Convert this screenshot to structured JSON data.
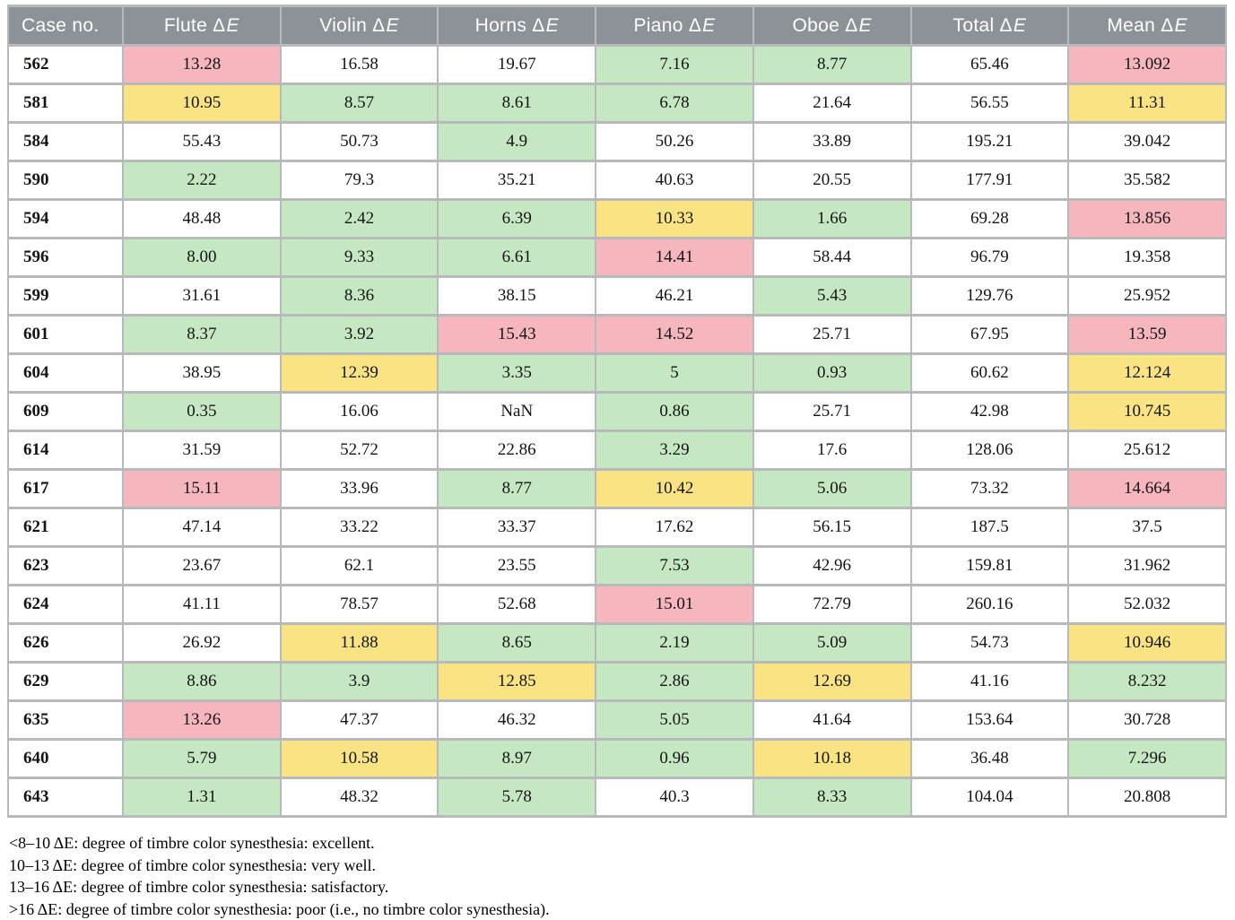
{
  "colors": {
    "header_bg": "#8d9298",
    "border": "#b7b9ba",
    "green_excellent": "#c5e8c2",
    "yellow_very_well": "#f9e383",
    "pink_satisfactory": "#f5b6bd",
    "white_poor": "#ffffff",
    "header_text": "#ffffff"
  },
  "table": {
    "columns": [
      {
        "text": "Case no.",
        "em": ""
      },
      {
        "text": "Flute Δ",
        "em": "E"
      },
      {
        "text": "Violin Δ",
        "em": "E"
      },
      {
        "text": "Horns Δ",
        "em": "E"
      },
      {
        "text": "Piano Δ",
        "em": "E"
      },
      {
        "text": "Oboe Δ",
        "em": "E"
      },
      {
        "text": "Total Δ",
        "em": "E"
      },
      {
        "text": "Mean Δ",
        "em": "E"
      }
    ],
    "rows": [
      {
        "case": "562",
        "cells": [
          {
            "v": "13.28",
            "c": "pink"
          },
          {
            "v": "16.58",
            "c": "white"
          },
          {
            "v": "19.67",
            "c": "white"
          },
          {
            "v": "7.16",
            "c": "green"
          },
          {
            "v": "8.77",
            "c": "green"
          },
          {
            "v": "65.46",
            "c": "white"
          },
          {
            "v": "13.092",
            "c": "pink"
          }
        ]
      },
      {
        "case": "581",
        "cells": [
          {
            "v": "10.95",
            "c": "yellow"
          },
          {
            "v": "8.57",
            "c": "green"
          },
          {
            "v": "8.61",
            "c": "green"
          },
          {
            "v": "6.78",
            "c": "green"
          },
          {
            "v": "21.64",
            "c": "white"
          },
          {
            "v": "56.55",
            "c": "white"
          },
          {
            "v": "11.31",
            "c": "yellow"
          }
        ]
      },
      {
        "case": "584",
        "cells": [
          {
            "v": "55.43",
            "c": "white"
          },
          {
            "v": "50.73",
            "c": "white"
          },
          {
            "v": "4.9",
            "c": "green"
          },
          {
            "v": "50.26",
            "c": "white"
          },
          {
            "v": "33.89",
            "c": "white"
          },
          {
            "v": "195.21",
            "c": "white"
          },
          {
            "v": "39.042",
            "c": "white"
          }
        ]
      },
      {
        "case": "590",
        "cells": [
          {
            "v": "2.22",
            "c": "green"
          },
          {
            "v": "79.3",
            "c": "white"
          },
          {
            "v": "35.21",
            "c": "white"
          },
          {
            "v": "40.63",
            "c": "white"
          },
          {
            "v": "20.55",
            "c": "white"
          },
          {
            "v": "177.91",
            "c": "white"
          },
          {
            "v": "35.582",
            "c": "white"
          }
        ]
      },
      {
        "case": "594",
        "cells": [
          {
            "v": "48.48",
            "c": "white"
          },
          {
            "v": "2.42",
            "c": "green"
          },
          {
            "v": "6.39",
            "c": "green"
          },
          {
            "v": "10.33",
            "c": "yellow"
          },
          {
            "v": "1.66",
            "c": "green"
          },
          {
            "v": "69.28",
            "c": "white"
          },
          {
            "v": "13.856",
            "c": "pink"
          }
        ]
      },
      {
        "case": "596",
        "cells": [
          {
            "v": "8.00",
            "c": "green"
          },
          {
            "v": "9.33",
            "c": "green"
          },
          {
            "v": "6.61",
            "c": "green"
          },
          {
            "v": "14.41",
            "c": "pink"
          },
          {
            "v": "58.44",
            "c": "white"
          },
          {
            "v": "96.79",
            "c": "white"
          },
          {
            "v": "19.358",
            "c": "white"
          }
        ]
      },
      {
        "case": "599",
        "cells": [
          {
            "v": "31.61",
            "c": "white"
          },
          {
            "v": "8.36",
            "c": "green"
          },
          {
            "v": "38.15",
            "c": "white"
          },
          {
            "v": "46.21",
            "c": "white"
          },
          {
            "v": "5.43",
            "c": "green"
          },
          {
            "v": "129.76",
            "c": "white"
          },
          {
            "v": "25.952",
            "c": "white"
          }
        ]
      },
      {
        "case": "601",
        "cells": [
          {
            "v": "8.37",
            "c": "green"
          },
          {
            "v": "3.92",
            "c": "green"
          },
          {
            "v": "15.43",
            "c": "pink"
          },
          {
            "v": "14.52",
            "c": "pink"
          },
          {
            "v": "25.71",
            "c": "white"
          },
          {
            "v": "67.95",
            "c": "white"
          },
          {
            "v": "13.59",
            "c": "pink"
          }
        ]
      },
      {
        "case": "604",
        "cells": [
          {
            "v": "38.95",
            "c": "white"
          },
          {
            "v": "12.39",
            "c": "yellow"
          },
          {
            "v": "3.35",
            "c": "green"
          },
          {
            "v": "5",
            "c": "green"
          },
          {
            "v": "0.93",
            "c": "green"
          },
          {
            "v": "60.62",
            "c": "white"
          },
          {
            "v": "12.124",
            "c": "yellow"
          }
        ]
      },
      {
        "case": "609",
        "cells": [
          {
            "v": "0.35",
            "c": "green"
          },
          {
            "v": "16.06",
            "c": "white"
          },
          {
            "v": "NaN",
            "c": "white"
          },
          {
            "v": "0.86",
            "c": "green"
          },
          {
            "v": "25.71",
            "c": "white"
          },
          {
            "v": "42.98",
            "c": "white"
          },
          {
            "v": "10.745",
            "c": "yellow"
          }
        ]
      },
      {
        "case": "614",
        "cells": [
          {
            "v": "31.59",
            "c": "white"
          },
          {
            "v": "52.72",
            "c": "white"
          },
          {
            "v": "22.86",
            "c": "white"
          },
          {
            "v": "3.29",
            "c": "green"
          },
          {
            "v": "17.6",
            "c": "white"
          },
          {
            "v": "128.06",
            "c": "white"
          },
          {
            "v": "25.612",
            "c": "white"
          }
        ]
      },
      {
        "case": "617",
        "cells": [
          {
            "v": "15.11",
            "c": "pink"
          },
          {
            "v": "33.96",
            "c": "white"
          },
          {
            "v": "8.77",
            "c": "green"
          },
          {
            "v": "10.42",
            "c": "yellow"
          },
          {
            "v": "5.06",
            "c": "green"
          },
          {
            "v": "73.32",
            "c": "white"
          },
          {
            "v": "14.664",
            "c": "pink"
          }
        ]
      },
      {
        "case": "621",
        "cells": [
          {
            "v": "47.14",
            "c": "white"
          },
          {
            "v": "33.22",
            "c": "white"
          },
          {
            "v": "33.37",
            "c": "white"
          },
          {
            "v": "17.62",
            "c": "white"
          },
          {
            "v": "56.15",
            "c": "white"
          },
          {
            "v": "187.5",
            "c": "white"
          },
          {
            "v": "37.5",
            "c": "white"
          }
        ]
      },
      {
        "case": "623",
        "cells": [
          {
            "v": "23.67",
            "c": "white"
          },
          {
            "v": "62.1",
            "c": "white"
          },
          {
            "v": "23.55",
            "c": "white"
          },
          {
            "v": "7.53",
            "c": "green"
          },
          {
            "v": "42.96",
            "c": "white"
          },
          {
            "v": "159.81",
            "c": "white"
          },
          {
            "v": "31.962",
            "c": "white"
          }
        ]
      },
      {
        "case": "624",
        "cells": [
          {
            "v": "41.11",
            "c": "white"
          },
          {
            "v": "78.57",
            "c": "white"
          },
          {
            "v": "52.68",
            "c": "white"
          },
          {
            "v": "15.01",
            "c": "pink"
          },
          {
            "v": "72.79",
            "c": "white"
          },
          {
            "v": "260.16",
            "c": "white"
          },
          {
            "v": "52.032",
            "c": "white"
          }
        ]
      },
      {
        "case": "626",
        "cells": [
          {
            "v": "26.92",
            "c": "white"
          },
          {
            "v": "11.88",
            "c": "yellow"
          },
          {
            "v": "8.65",
            "c": "green"
          },
          {
            "v": "2.19",
            "c": "green"
          },
          {
            "v": "5.09",
            "c": "green"
          },
          {
            "v": "54.73",
            "c": "white"
          },
          {
            "v": "10.946",
            "c": "yellow"
          }
        ]
      },
      {
        "case": "629",
        "cells": [
          {
            "v": "8.86",
            "c": "green"
          },
          {
            "v": "3.9",
            "c": "green"
          },
          {
            "v": "12.85",
            "c": "yellow"
          },
          {
            "v": "2.86",
            "c": "green"
          },
          {
            "v": "12.69",
            "c": "yellow"
          },
          {
            "v": "41.16",
            "c": "white"
          },
          {
            "v": "8.232",
            "c": "green"
          }
        ]
      },
      {
        "case": "635",
        "cells": [
          {
            "v": "13.26",
            "c": "pink"
          },
          {
            "v": "47.37",
            "c": "white"
          },
          {
            "v": "46.32",
            "c": "white"
          },
          {
            "v": "5.05",
            "c": "green"
          },
          {
            "v": "41.64",
            "c": "white"
          },
          {
            "v": "153.64",
            "c": "white"
          },
          {
            "v": "30.728",
            "c": "white"
          }
        ]
      },
      {
        "case": "640",
        "cells": [
          {
            "v": "5.79",
            "c": "green"
          },
          {
            "v": "10.58",
            "c": "yellow"
          },
          {
            "v": "8.97",
            "c": "green"
          },
          {
            "v": "0.96",
            "c": "green"
          },
          {
            "v": "10.18",
            "c": "yellow"
          },
          {
            "v": "36.48",
            "c": "white"
          },
          {
            "v": "7.296",
            "c": "green"
          }
        ]
      },
      {
        "case": "643",
        "cells": [
          {
            "v": "1.31",
            "c": "green"
          },
          {
            "v": "48.32",
            "c": "white"
          },
          {
            "v": "5.78",
            "c": "green"
          },
          {
            "v": "40.3",
            "c": "white"
          },
          {
            "v": "8.33",
            "c": "green"
          },
          {
            "v": "104.04",
            "c": "white"
          },
          {
            "v": "20.808",
            "c": "white"
          }
        ]
      }
    ]
  },
  "legend_notes": [
    "<8–10 ΔE: degree of timbre color synesthesia: excellent.",
    "10–13 ΔE: degree of timbre color synesthesia: very well.",
    "13–16 ΔE: degree of timbre color synesthesia: satisfactory.",
    ">16 ΔE: degree of timbre color synesthesia: poor (i.e., no timbre color synesthesia)."
  ]
}
